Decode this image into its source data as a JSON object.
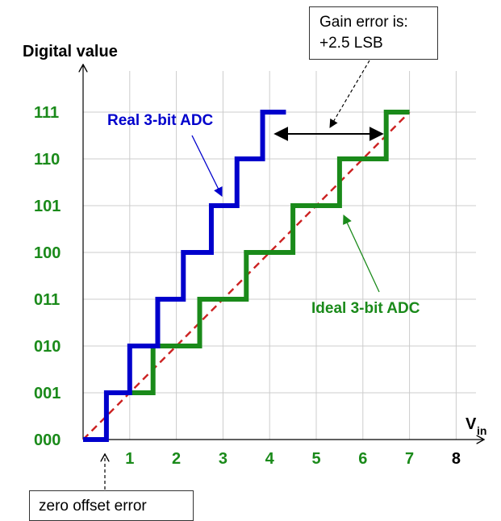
{
  "chart_data": {
    "type": "line",
    "title": "",
    "ylabel": "Digital value",
    "xlabel": "V",
    "xlabel_subscript": "in",
    "x_ticks": [
      "1",
      "2",
      "3",
      "4",
      "5",
      "6",
      "7",
      "8"
    ],
    "y_ticks": [
      "000",
      "001",
      "010",
      "011",
      "100",
      "101",
      "110",
      "111"
    ],
    "xlim": [
      0,
      8
    ],
    "ylim": [
      0,
      7
    ],
    "grid": true,
    "series": [
      {
        "name": "Real 3-bit ADC",
        "color": "#0000cc",
        "x": [
          0.5,
          0.5,
          1.0,
          1.0,
          1.6,
          1.6,
          2.15,
          2.15,
          2.75,
          2.75,
          3.3,
          3.3,
          3.85,
          3.85,
          4.35
        ],
        "y": [
          0,
          1,
          1,
          2,
          2,
          3,
          3,
          4,
          4,
          5,
          5,
          6,
          6,
          7,
          7
        ]
      },
      {
        "name": "Ideal 3-bit ADC",
        "color": "#1a8a1a",
        "x": [
          0.5,
          1.0,
          1.5,
          1.5,
          2.5,
          2.5,
          3.5,
          3.5,
          4.5,
          4.5,
          5.5,
          5.5,
          6.5,
          6.5,
          7.0
        ],
        "y": [
          1,
          1,
          1,
          2,
          2,
          3,
          3,
          4,
          4,
          5,
          5,
          6,
          6,
          7,
          7
        ]
      }
    ],
    "ideal_line": {
      "color": "#cc2222",
      "x": [
        0,
        7
      ],
      "y": [
        0,
        7
      ]
    },
    "annotations": {
      "real_label": "Real 3-bit ADC",
      "ideal_label": "Ideal 3-bit ADC",
      "gain_error_line1": "Gain error is:",
      "gain_error_line2": "+2.5 LSB",
      "zero_offset": "zero offset error"
    }
  },
  "colors": {
    "real": "#0000cc",
    "ideal": "#1a8a1a",
    "reference": "#cc2222",
    "grid": "#cccccc"
  }
}
